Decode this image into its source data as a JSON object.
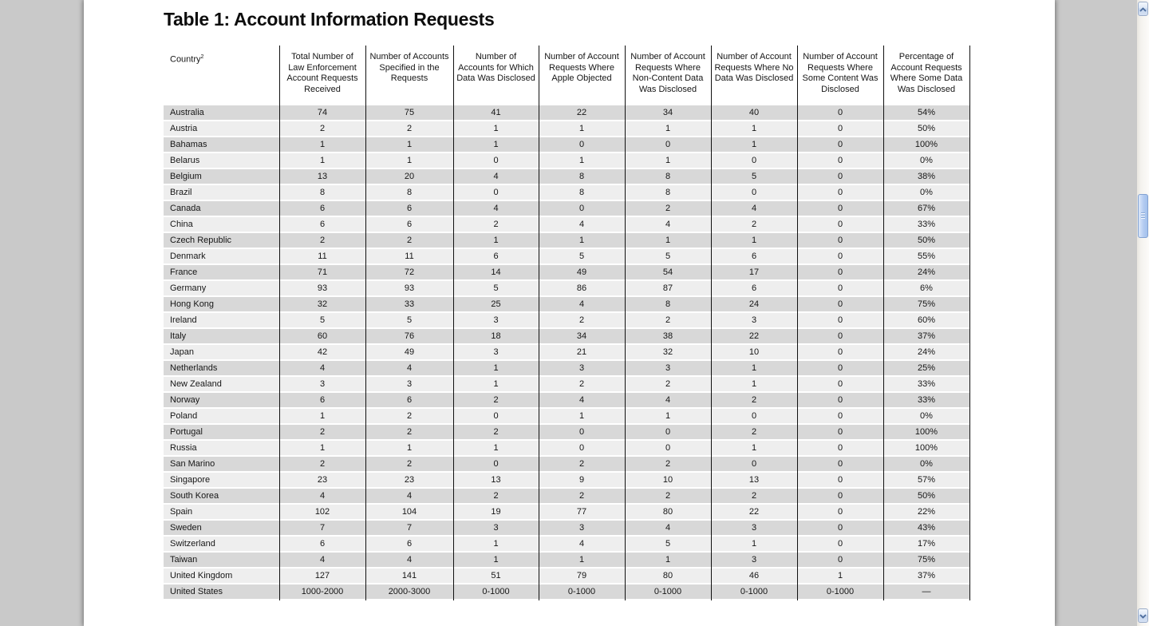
{
  "document": {
    "title": "Table 1: Account Information Requests",
    "table": {
      "country_header": "Country",
      "country_footnote_marker": "2",
      "column_headers": [
        "Total Number of Law Enforcement Account Requests Received",
        "Number of Accounts Specified in the Requests",
        "Number of Accounts for Which Data Was Disclosed",
        "Number of Account Requests Where Apple Objected",
        "Number of Account Requests Where Non-Content Data Was Disclosed",
        "Number of Account Requests Where No Data Was Disclosed",
        "Number of Account Requests Where Some Content Was Disclosed",
        "Percentage of Account Requests Where Some Data Was Disclosed"
      ],
      "rows": [
        {
          "country": "Australia",
          "values": [
            "74",
            "75",
            "41",
            "22",
            "34",
            "40",
            "0",
            "54%"
          ]
        },
        {
          "country": "Austria",
          "values": [
            "2",
            "2",
            "1",
            "1",
            "1",
            "1",
            "0",
            "50%"
          ]
        },
        {
          "country": "Bahamas",
          "values": [
            "1",
            "1",
            "1",
            "0",
            "0",
            "1",
            "0",
            "100%"
          ]
        },
        {
          "country": "Belarus",
          "values": [
            "1",
            "1",
            "0",
            "1",
            "1",
            "0",
            "0",
            "0%"
          ]
        },
        {
          "country": "Belgium",
          "values": [
            "13",
            "20",
            "4",
            "8",
            "8",
            "5",
            "0",
            "38%"
          ]
        },
        {
          "country": "Brazil",
          "values": [
            "8",
            "8",
            "0",
            "8",
            "8",
            "0",
            "0",
            "0%"
          ]
        },
        {
          "country": "Canada",
          "values": [
            "6",
            "6",
            "4",
            "0",
            "2",
            "4",
            "0",
            "67%"
          ]
        },
        {
          "country": "China",
          "values": [
            "6",
            "6",
            "2",
            "4",
            "4",
            "2",
            "0",
            "33%"
          ]
        },
        {
          "country": "Czech Republic",
          "values": [
            "2",
            "2",
            "1",
            "1",
            "1",
            "1",
            "0",
            "50%"
          ]
        },
        {
          "country": "Denmark",
          "values": [
            "11",
            "11",
            "6",
            "5",
            "5",
            "6",
            "0",
            "55%"
          ]
        },
        {
          "country": "France",
          "values": [
            "71",
            "72",
            "14",
            "49",
            "54",
            "17",
            "0",
            "24%"
          ]
        },
        {
          "country": "Germany",
          "values": [
            "93",
            "93",
            "5",
            "86",
            "87",
            "6",
            "0",
            "6%"
          ]
        },
        {
          "country": "Hong Kong",
          "values": [
            "32",
            "33",
            "25",
            "4",
            "8",
            "24",
            "0",
            "75%"
          ]
        },
        {
          "country": "Ireland",
          "values": [
            "5",
            "5",
            "3",
            "2",
            "2",
            "3",
            "0",
            "60%"
          ]
        },
        {
          "country": "Italy",
          "values": [
            "60",
            "76",
            "18",
            "34",
            "38",
            "22",
            "0",
            "37%"
          ]
        },
        {
          "country": "Japan",
          "values": [
            "42",
            "49",
            "3",
            "21",
            "32",
            "10",
            "0",
            "24%"
          ]
        },
        {
          "country": "Netherlands",
          "values": [
            "4",
            "4",
            "1",
            "3",
            "3",
            "1",
            "0",
            "25%"
          ]
        },
        {
          "country": "New Zealand",
          "values": [
            "3",
            "3",
            "1",
            "2",
            "2",
            "1",
            "0",
            "33%"
          ]
        },
        {
          "country": "Norway",
          "values": [
            "6",
            "6",
            "2",
            "4",
            "4",
            "2",
            "0",
            "33%"
          ]
        },
        {
          "country": "Poland",
          "values": [
            "1",
            "2",
            "0",
            "1",
            "1",
            "0",
            "0",
            "0%"
          ]
        },
        {
          "country": "Portugal",
          "values": [
            "2",
            "2",
            "2",
            "0",
            "0",
            "2",
            "0",
            "100%"
          ]
        },
        {
          "country": "Russia",
          "values": [
            "1",
            "1",
            "1",
            "0",
            "0",
            "1",
            "0",
            "100%"
          ]
        },
        {
          "country": "San Marino",
          "values": [
            "2",
            "2",
            "0",
            "2",
            "2",
            "0",
            "0",
            "0%"
          ]
        },
        {
          "country": "Singapore",
          "values": [
            "23",
            "23",
            "13",
            "9",
            "10",
            "13",
            "0",
            "57%"
          ]
        },
        {
          "country": "South Korea",
          "values": [
            "4",
            "4",
            "2",
            "2",
            "2",
            "2",
            "0",
            "50%"
          ]
        },
        {
          "country": "Spain",
          "values": [
            "102",
            "104",
            "19",
            "77",
            "80",
            "22",
            "0",
            "22%"
          ]
        },
        {
          "country": "Sweden",
          "values": [
            "7",
            "7",
            "3",
            "3",
            "4",
            "3",
            "0",
            "43%"
          ]
        },
        {
          "country": "Switzerland",
          "values": [
            "6",
            "6",
            "1",
            "4",
            "5",
            "1",
            "0",
            "17%"
          ]
        },
        {
          "country": "Taiwan",
          "values": [
            "4",
            "4",
            "1",
            "1",
            "1",
            "3",
            "0",
            "75%"
          ]
        },
        {
          "country": "United Kingdom",
          "values": [
            "127",
            "141",
            "51",
            "79",
            "80",
            "46",
            "1",
            "37%"
          ]
        },
        {
          "country": "United States",
          "values": [
            "1000-2000",
            "2000-3000",
            "0-1000",
            "0-1000",
            "0-1000",
            "0-1000",
            "0-1000",
            "—"
          ]
        }
      ]
    }
  },
  "colors": {
    "background": "#c9c9c9",
    "row_stripe_dark": "#d8d8d8",
    "row_stripe_light": "#eeeeee",
    "table_line": "#111111",
    "scrollbar_thumb": "#b4ccf1"
  }
}
